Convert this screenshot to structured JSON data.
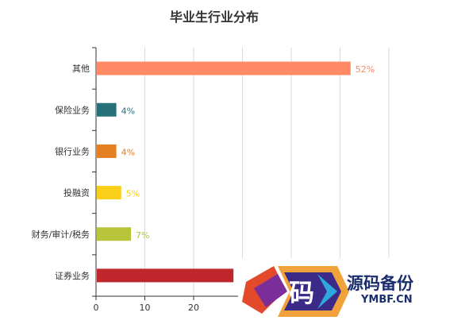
{
  "chart_data": {
    "type": "bar",
    "orientation": "horizontal",
    "title": "毕业生行业分布",
    "categories": [
      "其他",
      "保险业务",
      "银行业务",
      "投融资",
      "财务/审计/税务",
      "证券业务"
    ],
    "values": [
      52,
      4,
      4,
      5,
      7,
      28
    ],
    "data_labels": [
      "52%",
      "4%",
      "4%",
      "5%",
      "7%",
      ""
    ],
    "colors": [
      "#ff8a65",
      "#26717a",
      "#e67e22",
      "#f9cf1a",
      "#b8c43a",
      "#c0272d"
    ],
    "x_ticks": [
      "0",
      "10",
      "20"
    ],
    "xlim": [
      0,
      60
    ],
    "grid": true,
    "legend": "none"
  },
  "watermark": {
    "glyph": "码",
    "text": "源码备份",
    "subtext": "YMBF.CN"
  }
}
